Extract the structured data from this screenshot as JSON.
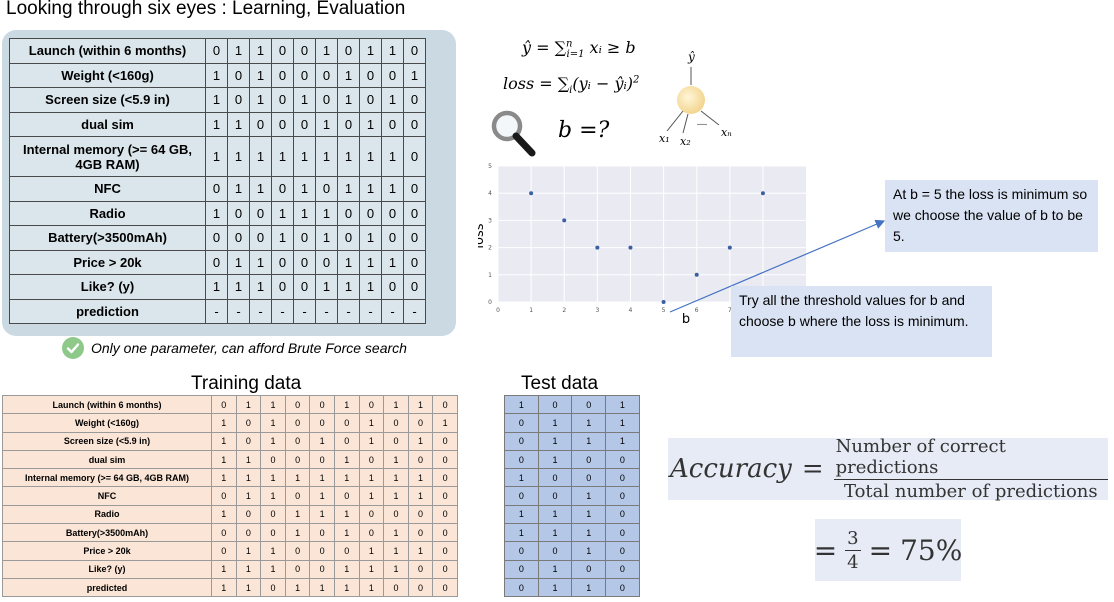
{
  "title": "Looking through six eyes : Learning, Evaluation",
  "feature_table": {
    "rows": [
      {
        "label": "Launch (within 6 months)",
        "values": [
          "0",
          "1",
          "1",
          "0",
          "0",
          "1",
          "0",
          "1",
          "1",
          "0"
        ]
      },
      {
        "label": "Weight (<160g)",
        "values": [
          "1",
          "0",
          "1",
          "0",
          "0",
          "0",
          "1",
          "0",
          "0",
          "1"
        ]
      },
      {
        "label": "Screen size (<5.9 in)",
        "values": [
          "1",
          "0",
          "1",
          "0",
          "1",
          "0",
          "1",
          "0",
          "1",
          "0"
        ]
      },
      {
        "label": "dual sim",
        "values": [
          "1",
          "1",
          "0",
          "0",
          "0",
          "1",
          "0",
          "1",
          "0",
          "0"
        ]
      },
      {
        "label": "Internal memory (>= 64 GB, 4GB RAM)",
        "values": [
          "1",
          "1",
          "1",
          "1",
          "1",
          "1",
          "1",
          "1",
          "1",
          "0"
        ]
      },
      {
        "label": "NFC",
        "values": [
          "0",
          "1",
          "1",
          "0",
          "1",
          "0",
          "1",
          "1",
          "1",
          "0"
        ]
      },
      {
        "label": "Radio",
        "values": [
          "1",
          "0",
          "0",
          "1",
          "1",
          "1",
          "0",
          "0",
          "0",
          "0"
        ]
      },
      {
        "label": "Battery(>3500mAh)",
        "values": [
          "0",
          "0",
          "0",
          "1",
          "0",
          "1",
          "0",
          "1",
          "0",
          "0"
        ]
      },
      {
        "label": "Price > 20k",
        "values": [
          "0",
          "1",
          "1",
          "0",
          "0",
          "0",
          "1",
          "1",
          "1",
          "0"
        ]
      },
      {
        "label": "Like?     (y)",
        "values": [
          "1",
          "1",
          "1",
          "0",
          "0",
          "1",
          "1",
          "1",
          "0",
          "0"
        ]
      },
      {
        "label": "prediction",
        "values": [
          "-",
          "-",
          "-",
          "-",
          "-",
          "-",
          "-",
          "-",
          "-",
          "-"
        ]
      }
    ]
  },
  "brute_force_note": "Only one parameter, can afford Brute Force search",
  "formulas": {
    "yhat": {
      "lhs": "ŷ = ∑",
      "sup": "n",
      "sub": "i=1",
      "rhs": " xᵢ ≥ b"
    },
    "loss": {
      "lhs": "loss = ∑",
      "sub": "i",
      "rhs": "(yᵢ − ŷᵢ)",
      "power": "2"
    },
    "b_question": "b =?"
  },
  "neuron": {
    "output": "ŷ",
    "inputs": [
      "x₁",
      "x₂",
      "xₙ"
    ],
    "ellipsis": "—"
  },
  "chart_data": {
    "type": "scatter",
    "title": "",
    "xlabel": "b",
    "ylabel": "loss",
    "x": [
      1,
      2,
      3,
      4,
      5,
      6,
      7,
      8
    ],
    "y": [
      4,
      3,
      2,
      2,
      0,
      1,
      2,
      4
    ],
    "xlim": [
      0,
      9.3
    ],
    "ylim": [
      0,
      5
    ],
    "xticks": [
      "0",
      "1",
      "2",
      "3",
      "4",
      "5",
      "6",
      "7",
      "8"
    ],
    "yticks": [
      "0",
      "1",
      "2",
      "3",
      "4",
      "5"
    ],
    "grid": true,
    "point_color": "#3c5fa0"
  },
  "callouts": {
    "minimum": "At b = 5 the loss is minimum so we choose the value of b to be 5.",
    "try": "Try all the threshold values for b and choose b where the loss is minimum."
  },
  "training": {
    "heading": "Training data",
    "rows": [
      {
        "label": "Launch (within 6 months)",
        "values": [
          "0",
          "1",
          "1",
          "0",
          "0",
          "1",
          "0",
          "1",
          "1",
          "0"
        ]
      },
      {
        "label": "Weight (<160g)",
        "values": [
          "1",
          "0",
          "1",
          "0",
          "0",
          "0",
          "1",
          "0",
          "0",
          "1"
        ]
      },
      {
        "label": "Screen size (<5.9 in)",
        "values": [
          "1",
          "0",
          "1",
          "0",
          "1",
          "0",
          "1",
          "0",
          "1",
          "0"
        ]
      },
      {
        "label": "dual sim",
        "values": [
          "1",
          "1",
          "0",
          "0",
          "0",
          "1",
          "0",
          "1",
          "0",
          "0"
        ]
      },
      {
        "label": "Internal memory (>= 64 GB, 4GB RAM)",
        "values": [
          "1",
          "1",
          "1",
          "1",
          "1",
          "1",
          "1",
          "1",
          "1",
          "0"
        ]
      },
      {
        "label": "NFC",
        "values": [
          "0",
          "1",
          "1",
          "0",
          "1",
          "0",
          "1",
          "1",
          "1",
          "0"
        ]
      },
      {
        "label": "Radio",
        "values": [
          "1",
          "0",
          "0",
          "1",
          "1",
          "1",
          "0",
          "0",
          "0",
          "0"
        ]
      },
      {
        "label": "Battery(>3500mAh)",
        "values": [
          "0",
          "0",
          "0",
          "1",
          "0",
          "1",
          "0",
          "1",
          "0",
          "0"
        ]
      },
      {
        "label": "Price > 20k",
        "values": [
          "0",
          "1",
          "1",
          "0",
          "0",
          "0",
          "1",
          "1",
          "1",
          "0"
        ]
      },
      {
        "label": "Like?     (y)",
        "values": [
          "1",
          "1",
          "1",
          "0",
          "0",
          "1",
          "1",
          "1",
          "0",
          "0"
        ]
      },
      {
        "label": "predicted",
        "values": [
          "1",
          "1",
          "0",
          "1",
          "1",
          "1",
          "1",
          "0",
          "0",
          "0"
        ]
      }
    ]
  },
  "test": {
    "heading": "Test data",
    "rows": [
      [
        "1",
        "0",
        "0",
        "1"
      ],
      [
        "0",
        "1",
        "1",
        "1"
      ],
      [
        "0",
        "1",
        "1",
        "1"
      ],
      [
        "0",
        "1",
        "0",
        "0"
      ],
      [
        "1",
        "0",
        "0",
        "0"
      ],
      [
        "0",
        "0",
        "1",
        "0"
      ],
      [
        "1",
        "1",
        "1",
        "0"
      ],
      [
        "1",
        "1",
        "1",
        "0"
      ],
      [
        "0",
        "0",
        "1",
        "0"
      ],
      [
        "0",
        "1",
        "0",
        "0"
      ],
      [
        "0",
        "1",
        "1",
        "0"
      ]
    ]
  },
  "accuracy": {
    "word": "Accuracy",
    "equals": "=",
    "numerator": "Number of correct predictions",
    "denominator": "Total number of predictions",
    "result_num": "3",
    "result_den": "4",
    "result_value": "75%"
  }
}
